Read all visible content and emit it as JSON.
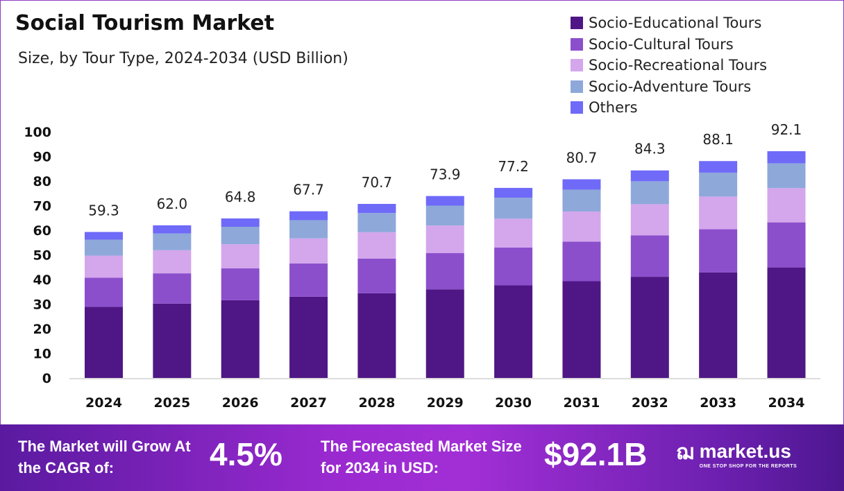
{
  "chart_data": {
    "type": "bar",
    "stacked": true,
    "title": "Social Tourism Market",
    "subtitle": "Size, by Tour Type, 2024-2034 (USD Billion)",
    "categories": [
      "2024",
      "2025",
      "2026",
      "2027",
      "2028",
      "2029",
      "2030",
      "2031",
      "2032",
      "2033",
      "2034"
    ],
    "totals": [
      "59.3",
      "62.0",
      "64.8",
      "67.7",
      "70.7",
      "73.9",
      "77.2",
      "80.7",
      "84.3",
      "88.1",
      "92.1"
    ],
    "series": [
      {
        "name": "Socio-Educational Tours",
        "color": "#4f1785",
        "values": [
          28.9,
          30.2,
          31.6,
          33.0,
          34.4,
          36.0,
          37.6,
          39.3,
          41.1,
          42.9,
          44.9
        ]
      },
      {
        "name": "Socio-Cultural Tours",
        "color": "#8b4fcc",
        "values": [
          11.8,
          12.3,
          12.9,
          13.5,
          14.1,
          14.7,
          15.4,
          16.1,
          16.8,
          17.5,
          18.3
        ]
      },
      {
        "name": "Socio-Recreational Tours",
        "color": "#d4a6ec",
        "values": [
          9.0,
          9.4,
          9.8,
          10.2,
          10.7,
          11.2,
          11.7,
          12.2,
          12.7,
          13.3,
          13.9
        ]
      },
      {
        "name": "Socio-Adventure Tours",
        "color": "#8ea8da",
        "values": [
          6.5,
          6.8,
          7.1,
          7.4,
          7.8,
          8.1,
          8.5,
          8.9,
          9.3,
          9.7,
          10.1
        ]
      },
      {
        "name": "Others",
        "color": "#6f6af8",
        "values": [
          3.1,
          3.3,
          3.4,
          3.6,
          3.7,
          3.9,
          4.0,
          4.2,
          4.4,
          4.7,
          4.9
        ]
      }
    ],
    "yticks": [
      "0",
      "10",
      "20",
      "30",
      "40",
      "50",
      "60",
      "70",
      "80",
      "90",
      "100"
    ],
    "ylim": [
      0,
      100
    ],
    "grid": false,
    "legend": "top-right"
  },
  "banner": {
    "cagr_label": "The Market will Grow At the CAGR of:",
    "cagr_value": "4.5%",
    "forecast_label": "The Forecasted Market Size for 2034 in USD:",
    "forecast_value": "$92.1B",
    "brand": "market.us",
    "tagline": "ONE STOP SHOP FOR THE REPORTS"
  }
}
